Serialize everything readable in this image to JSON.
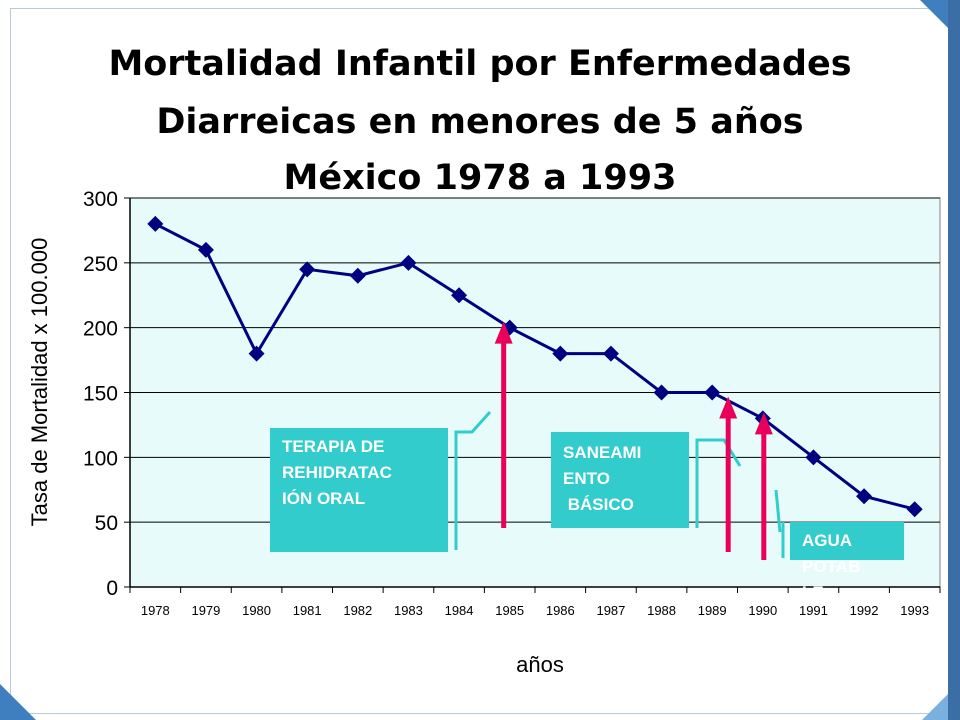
{
  "title_lines": [
    "Mortalidad Infantil por Enfermedades",
    "Diarreicas en menores de 5 años",
    "México 1978 a 1993"
  ],
  "chart_data": {
    "type": "line",
    "title": "Mortalidad Infantil por Enfermedades Diarreicas en menores de 5 años México 1978 a 1993",
    "xlabel": "años",
    "ylabel": "Tasa de Mortalidad x 100.000",
    "categories": [
      "1978",
      "1979",
      "1980",
      "1981",
      "1982",
      "1983",
      "1984",
      "1985",
      "1986",
      "1987",
      "1988",
      "1989",
      "1990",
      "1991",
      "1992",
      "1993"
    ],
    "series": [
      {
        "values": [
          280,
          260,
          180,
          245,
          240,
          250,
          225,
          200,
          180,
          180,
          150,
          150,
          130,
          100,
          70,
          60
        ]
      }
    ],
    "ylim": [
      0,
      300
    ],
    "yticks": [
      0,
      50,
      100,
      150,
      200,
      250,
      300
    ],
    "grid": true,
    "line_color": "#000080",
    "plot_background": "#e8fbfb",
    "annotations": [
      {
        "text": "TERAPIA DE\nREHIDRATAC\nIÓN ORAL",
        "arrow_at": "1985"
      },
      {
        "text": "SANEAMI\nENTO\n BÁSICO",
        "arrow_at": "1989"
      },
      {
        "text": "AGUA\nPOTAB\nLE",
        "arrow_at": "1990"
      }
    ],
    "arrow_color": "#e8005a",
    "box_color": "#33cccc"
  }
}
